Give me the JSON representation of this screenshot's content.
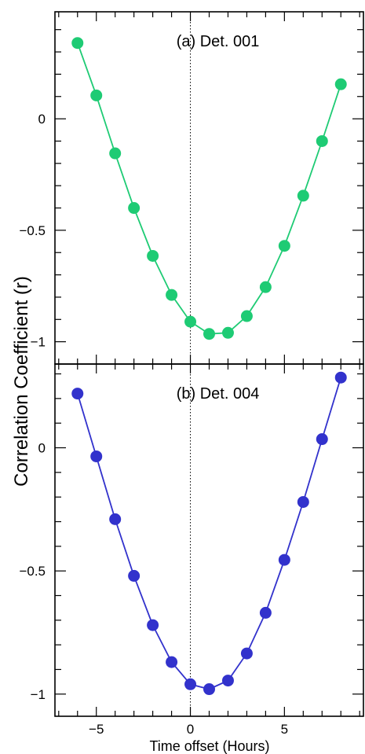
{
  "figure": {
    "ylabel": "Correlation Coefficient (r)",
    "xlabel": "Time offset (Hours)"
  },
  "chart_data": [
    {
      "type": "line",
      "title": "(a) Det. 001",
      "xlim": [
        -7.2,
        9.2
      ],
      "ylim": [
        -1.1,
        0.48
      ],
      "xticks": [
        -5,
        0,
        5
      ],
      "yticks": [
        0,
        -0.5,
        -1
      ],
      "ytick_labels": [
        "0",
        "−0.5",
        "−1"
      ],
      "vline_x": 0,
      "color": "#1ecb74",
      "series": [
        {
          "x": [
            -6,
            -5,
            -4,
            -3,
            -2,
            -1,
            0,
            1,
            2,
            3,
            4,
            5,
            6,
            7,
            8
          ],
          "y": [
            0.34,
            0.105,
            -0.155,
            -0.4,
            -0.615,
            -0.79,
            -0.91,
            -0.965,
            -0.96,
            -0.885,
            -0.755,
            -0.57,
            -0.345,
            -0.1,
            0.155
          ]
        }
      ]
    },
    {
      "type": "line",
      "title": "(b) Det. 004",
      "xlim": [
        -7.2,
        9.2
      ],
      "ylim": [
        -1.09,
        0.34
      ],
      "xticks": [
        -5,
        0,
        5
      ],
      "xtick_labels": [
        "−5",
        "0",
        "5"
      ],
      "yticks": [
        0,
        -0.5,
        -1
      ],
      "ytick_labels": [
        "0",
        "−0.5",
        "−1"
      ],
      "vline_x": 0,
      "color": "#3232cc",
      "series": [
        {
          "x": [
            -6,
            -5,
            -4,
            -3,
            -2,
            -1,
            0,
            1,
            2,
            3,
            4,
            5,
            6,
            7,
            8
          ],
          "y": [
            0.22,
            -0.035,
            -0.29,
            -0.52,
            -0.72,
            -0.87,
            -0.96,
            -0.98,
            -0.945,
            -0.835,
            -0.67,
            -0.455,
            -0.22,
            0.035,
            0.285
          ]
        }
      ]
    }
  ]
}
